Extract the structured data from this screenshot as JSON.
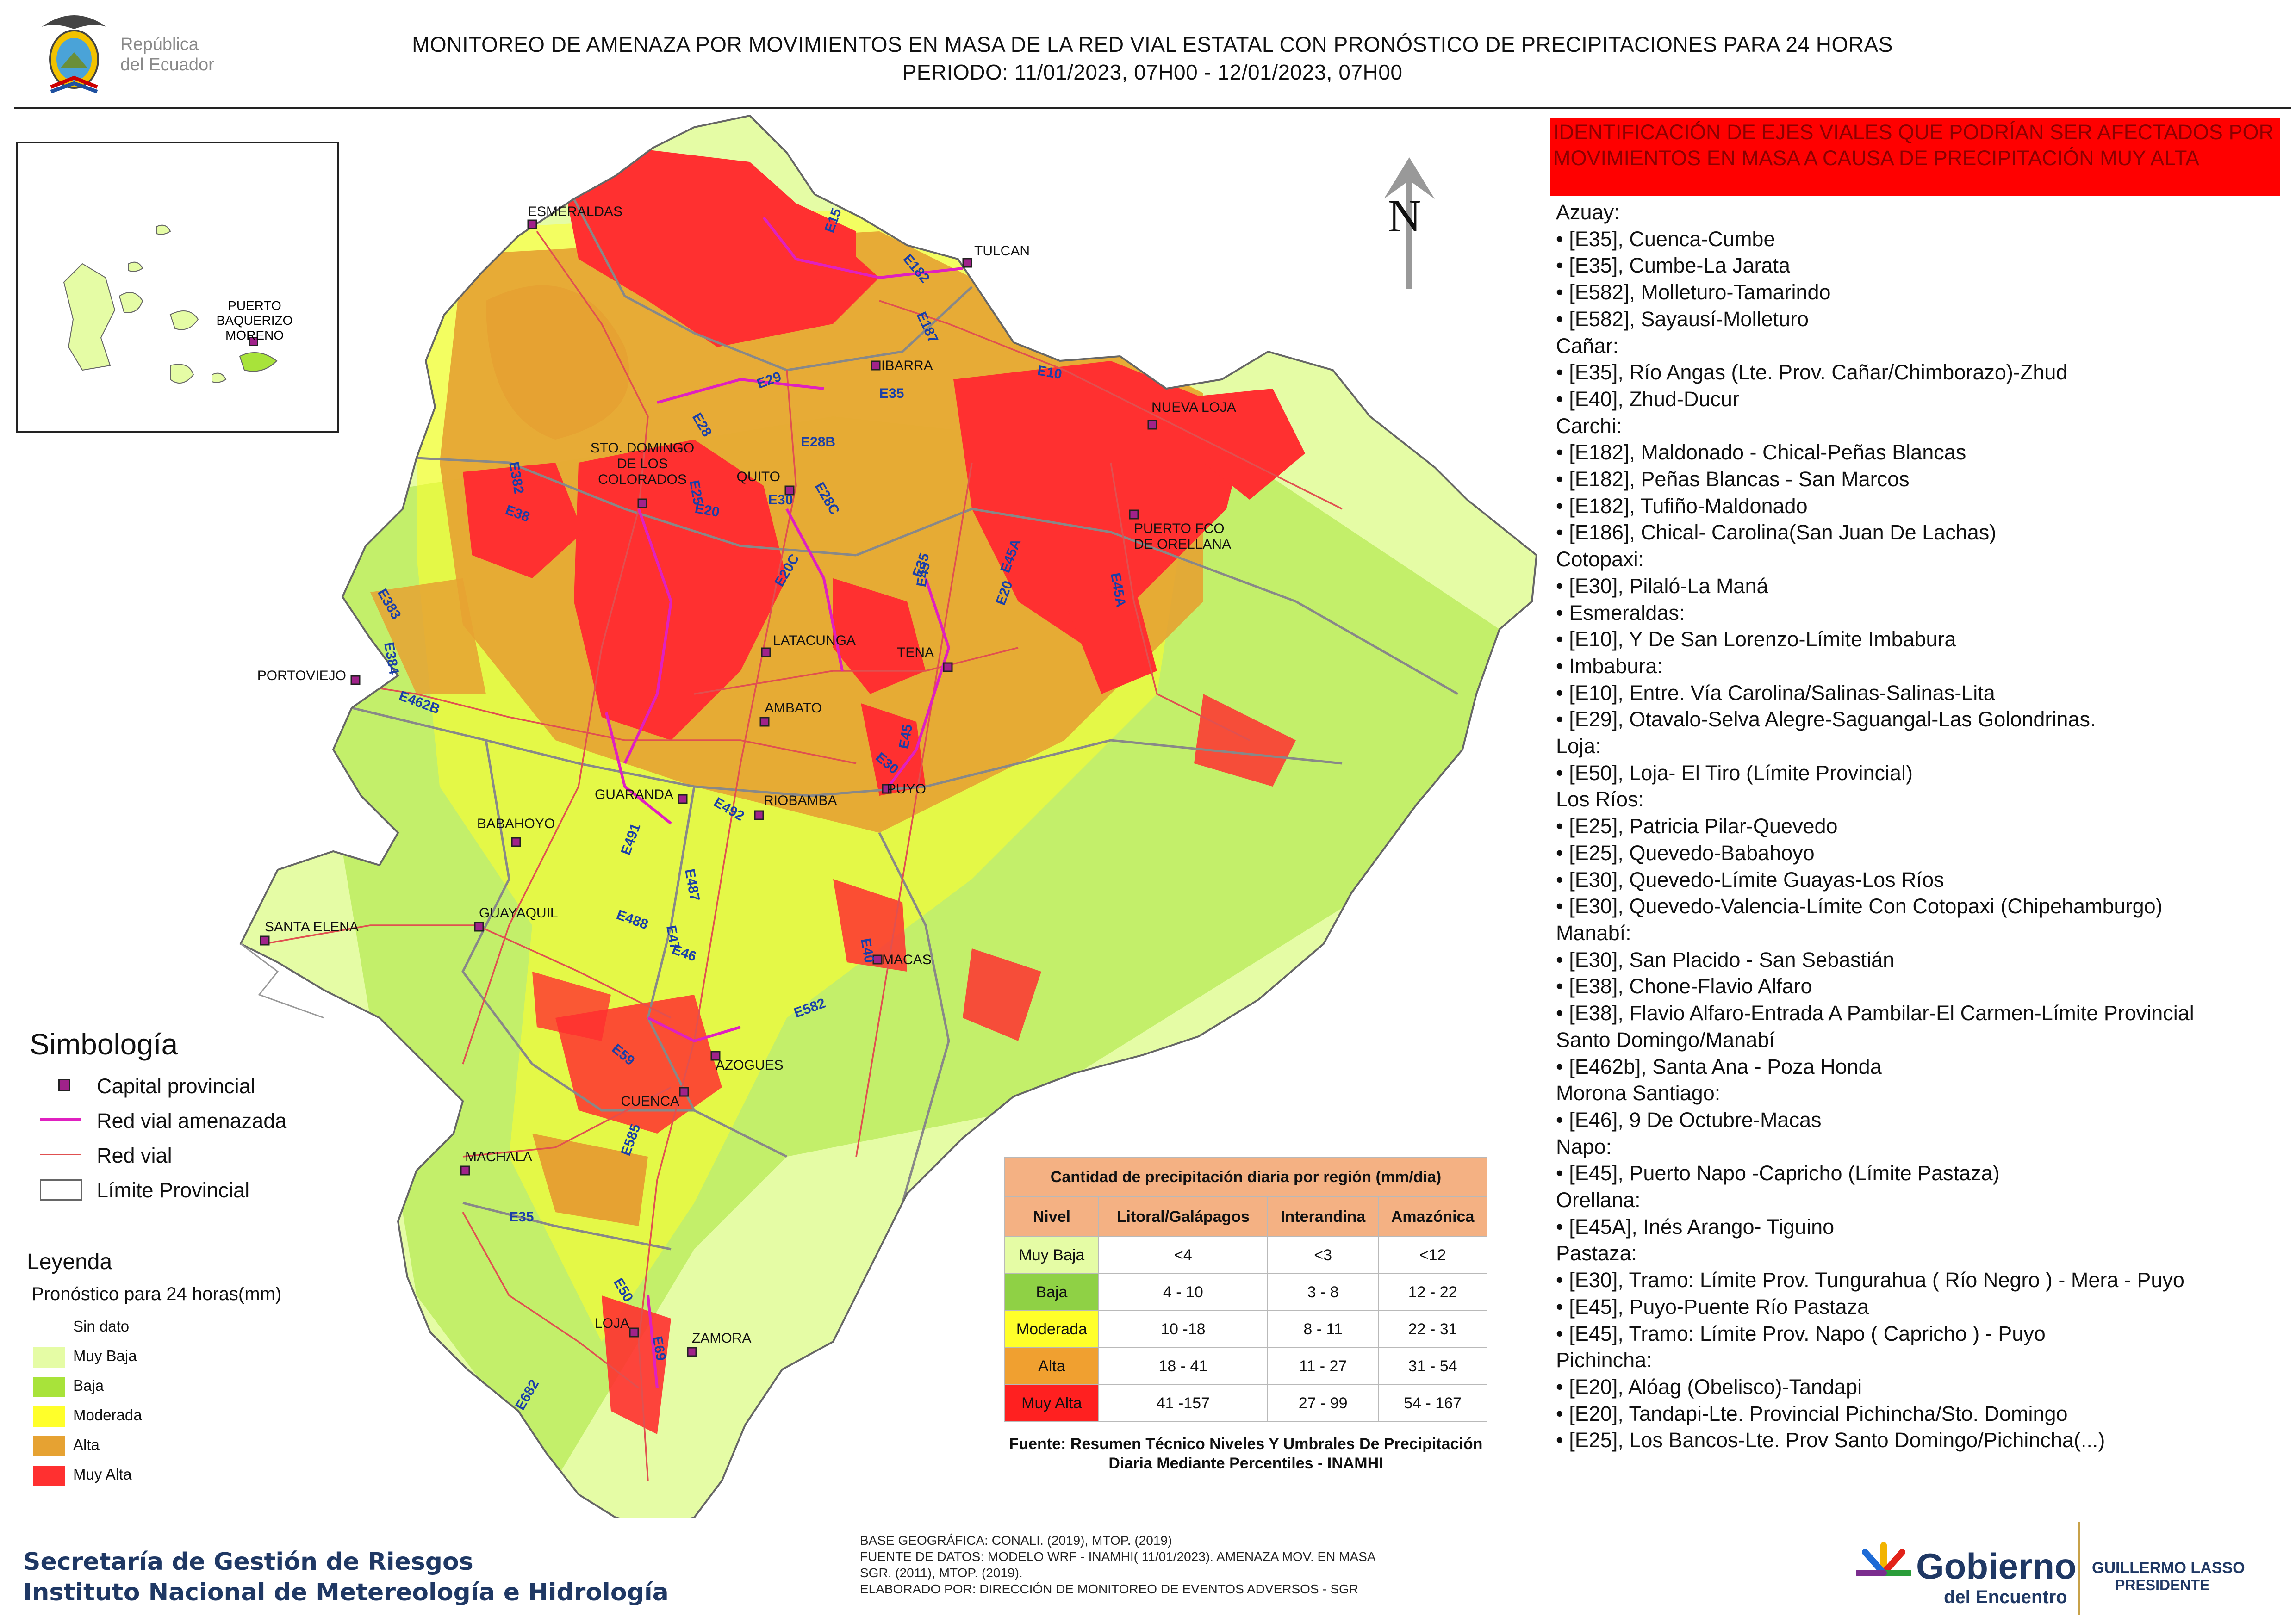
{
  "header": {
    "title_line1": "MONITOREO DE AMENAZA POR MOVIMIENTOS EN MASA DE LA RED VIAL  ESTATAL  CON PRONÓSTICO  DE  PRECIPITACIONES PARA 24 HORAS",
    "title_line2": "PERIODO: 11/01/2023, 07H00 - 12/01/2023, 07H00",
    "logo_text": [
      "República",
      "del Ecuador"
    ]
  },
  "map": {
    "north_label": "N",
    "cities": [
      {
        "id": "esmeraldas",
        "name": "ESMERALDAS"
      },
      {
        "id": "tulcan",
        "name": "TULCAN"
      },
      {
        "id": "ibarra",
        "name": "IBARRA"
      },
      {
        "id": "nueva-loja",
        "name": "NUEVA LOJA"
      },
      {
        "id": "sto-domingo",
        "name": "STO. DOMINGO\nDE LOS\nCOLORADOS"
      },
      {
        "id": "quito",
        "name": "QUITO"
      },
      {
        "id": "puerto-fco",
        "name": "PUERTO FCO\nDE ORELLANA"
      },
      {
        "id": "portoviejo",
        "name": "PORTOVIEJO"
      },
      {
        "id": "latacunga",
        "name": "LATACUNGA"
      },
      {
        "id": "tena",
        "name": "TENA"
      },
      {
        "id": "ambato",
        "name": "AMBATO"
      },
      {
        "id": "guaranda",
        "name": "GUARANDA"
      },
      {
        "id": "riobamba",
        "name": "RIOBAMBA"
      },
      {
        "id": "puyo",
        "name": "PUYO"
      },
      {
        "id": "babahoyo",
        "name": "BABAHOYO"
      },
      {
        "id": "guayaquil",
        "name": "GUAYAQUIL"
      },
      {
        "id": "santa-elena",
        "name": "SANTA ELENA"
      },
      {
        "id": "macas",
        "name": "MACAS"
      },
      {
        "id": "azogues",
        "name": "AZOGUES"
      },
      {
        "id": "cuenca",
        "name": "CUENCA"
      },
      {
        "id": "machala",
        "name": "MACHALA"
      },
      {
        "id": "loja",
        "name": "LOJA"
      },
      {
        "id": "zamora",
        "name": "ZAMORA"
      },
      {
        "id": "puerto-baquerizo",
        "name": "PUERTO\nBAQUERIZO\nMORENO"
      }
    ],
    "road_labels": [
      "E15",
      "E182",
      "E187",
      "E10",
      "E29",
      "E35",
      "E28",
      "E28B",
      "E25",
      "E28C",
      "E20",
      "E382",
      "E38",
      "E30",
      "E20C",
      "E35",
      "E45",
      "E45A",
      "E20",
      "E45A",
      "E383",
      "E384",
      "E462B",
      "E30",
      "E45",
      "E492",
      "E491",
      "E487",
      "E488",
      "E47",
      "E46",
      "E40",
      "E582",
      "E59",
      "E585",
      "E35",
      "E50",
      "E69",
      "E682"
    ]
  },
  "alert": {
    "title": "IDENTIFICACIÓN DE EJES VIALES QUE PODRÍAN SER AFECTADOS POR MOVIMIENTOS EN MASA A CAUSA DE PRECIPITACIÓN MUY ALTA",
    "items": [
      "Azuay:",
      "• [E35], Cuenca-Cumbe",
      "• [E35], Cumbe-La Jarata",
      "• [E582], Molleturo-Tamarindo",
      "• [E582], Sayausí-Molleturo",
      "Cañar:",
      "• [E35], Río Angas (Lte. Prov. Cañar/Chimborazo)-Zhud",
      "• [E40], Zhud-Ducur",
      "Carchi:",
      "• [E182], Maldonado - Chical-Peñas Blancas",
      "• [E182], Peñas Blancas - San Marcos",
      "• [E182], Tufiño-Maldonado",
      "• [E186], Chical- Carolina(San Juan De Lachas)",
      "Cotopaxi:",
      "• [E30], Pilaló-La Maná",
      "• Esmeraldas:",
      "• [E10], Y De San Lorenzo-Límite Imbabura",
      "• Imbabura:",
      "• [E10], Entre. Vía Carolina/Salinas-Salinas-Lita",
      "• [E29], Otavalo-Selva Alegre-Saguangal-Las Golondrinas.",
      "Loja:",
      "• [E50], Loja- El Tiro (Límite Provincial)",
      "Los Ríos:",
      "• [E25], Patricia Pilar-Quevedo",
      "• [E25], Quevedo-Babahoyo",
      "• [E30], Quevedo-Límite Guayas-Los Ríos",
      "• [E30], Quevedo-Valencia-Límite Con Cotopaxi (Chipehamburgo)",
      "Manabí:",
      "• [E30], San Placido - San Sebastián",
      "• [E38], Chone-Flavio Alfaro",
      "• [E38], Flavio Alfaro-Entrada A Pambilar-El Carmen-Límite Provincial",
      "Santo Domingo/Manabí",
      "• [E462b], Santa Ana - Poza Honda",
      "Morona Santiago:",
      "• [E46], 9 De Octubre-Macas",
      "Napo:",
      "• [E45], Puerto Napo -Capricho (Límite Pastaza)",
      "Orellana:",
      "• [E45A], Inés Arango- Tiguino",
      "Pastaza:",
      "• [E30], Tramo: Límite Prov. Tungurahua ( Río Negro ) - Mera - Puyo",
      "• [E45], Puyo-Puente Río Pastaza",
      "• [E45], Tramo: Límite Prov. Napo ( Capricho ) - Puyo",
      "Pichincha:",
      "• [E20], Alóag (Obelisco)-Tandapi",
      "• [E20], Tandapi-Lte. Provincial Pichincha/Sto. Domingo",
      "• [E25], Los Bancos-Lte. Prov Santo Domingo/Pichincha(...)"
    ]
  },
  "simbologia": {
    "title": "Simbología",
    "items": [
      "Capital provincial",
      "Red vial amenazada",
      "Red vial",
      "Límite Provincial"
    ]
  },
  "leyenda": {
    "title": "Leyenda",
    "subtitle": "Pronóstico para 24 horas(mm)",
    "items": [
      {
        "label": "Sin dato",
        "color": "#ffffff"
      },
      {
        "label": "Muy Baja",
        "color": "#e5fca5"
      },
      {
        "label": "Baja",
        "color": "#a8e33a"
      },
      {
        "label": "Moderada",
        "color": "#ffff2a"
      },
      {
        "label": "Alta",
        "color": "#e6a232"
      },
      {
        "label": "Muy Alta",
        "color": "#ff3030"
      }
    ]
  },
  "precip_table": {
    "title": "Cantidad de precipitación diaria por región (mm/dia)",
    "headers": [
      "Nivel",
      "Litoral/Galápagos",
      "Interandina",
      "Amazónica"
    ],
    "rows": [
      {
        "nivel": "Muy Baja",
        "color": "#e5fca5",
        "v": [
          "<4",
          "<3",
          "<12"
        ]
      },
      {
        "nivel": "Baja",
        "color": "#8fd145",
        "v": [
          "4 - 10",
          "3 - 8",
          "12 - 22"
        ]
      },
      {
        "nivel": "Moderada",
        "color": "#ffff2a",
        "v": [
          "10 -18",
          "8 - 11",
          "22 - 31"
        ]
      },
      {
        "nivel": "Alta",
        "color": "#f0a030",
        "v": [
          "18 - 41",
          "11 - 27",
          "31 - 54"
        ]
      },
      {
        "nivel": "Muy Alta",
        "color": "#ff2020",
        "v": [
          "41 -157",
          "27 - 99",
          "54 - 167"
        ]
      }
    ],
    "source": "Fuente: Resumen Técnico Niveles Y Umbrales De Precipitación Diaria Mediante Percentiles - INAMHI"
  },
  "footer": {
    "org1": "Secretaría de Gestión de Riesgos",
    "org2": "Instituto Nacional de Metereología e Hidrología",
    "credits": [
      "BASE GEOGRÁFICA: CONALI. (2019), MTOP. (2019)",
      "FUENTE DE DATOS: MODELO WRF - INAMHI( 11/01/2023).  AMENAZA MOV. EN MASA",
      "SGR. (2011), MTOP. (2019).",
      "ELABORADO POR: DIRECCIÓN DE MONITOREO DE EVENTOS ADVERSOS - SGR"
    ],
    "gobierno": "Gobierno",
    "del_encuentro": "del Encuentro",
    "president_name": "GUILLERMO LASSO",
    "president_role": "PRESIDENTE"
  },
  "colors": {
    "muy_baja": "#e5fca5",
    "baja": "#a8e33a",
    "moderada": "#ffff2a",
    "alta": "#e6a232",
    "muy_alta": "#ff3030",
    "threatened_road": "#e020c0",
    "road": "#e05050",
    "boundary": "#888888",
    "capital": "#a0228a",
    "alert_red": "#ff0000"
  }
}
